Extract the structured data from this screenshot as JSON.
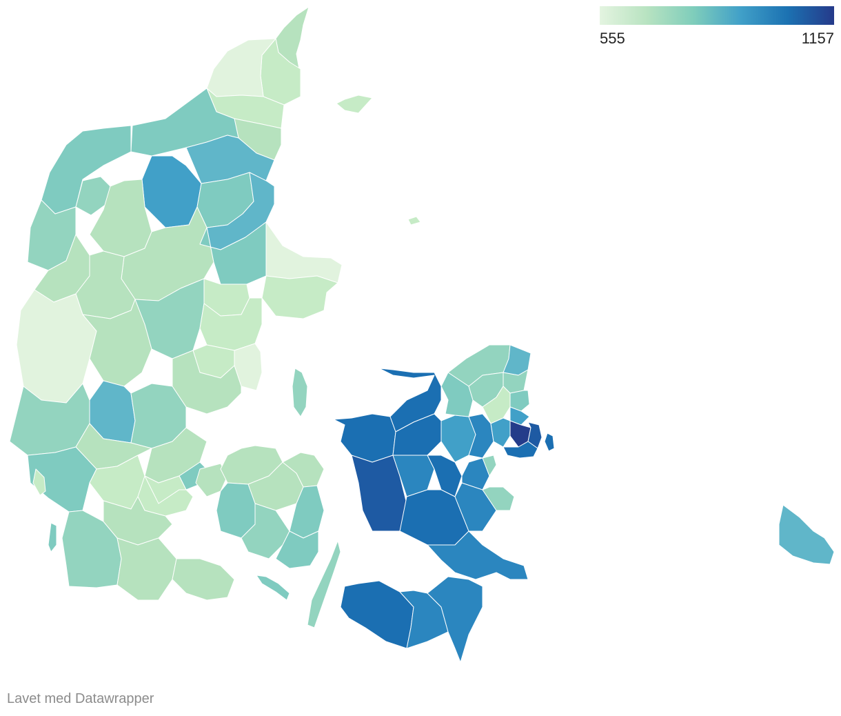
{
  "legend": {
    "min_label": "555",
    "max_label": "1157",
    "min_value": 555,
    "max_value": 1157,
    "gradient_colors": [
      "#e4f4e0",
      "#b8e3c1",
      "#7fcdbb",
      "#41a0c8",
      "#1c72b2",
      "#253a8a"
    ]
  },
  "credit": {
    "text": "Lavet med Datawrapper"
  },
  "map": {
    "type": "choropleth",
    "palette": {
      "level_1": "#e1f3de",
      "level_2": "#c6ebc6",
      "level_3": "#b6e2be",
      "level_4": "#93d4bf",
      "level_5": "#7fcbc0",
      "level_6": "#60b6c9",
      "level_7": "#41a0c8",
      "level_8": "#2b86bf",
      "level_9": "#1b6fb2",
      "level_10": "#1e5aa3",
      "level_11": "#243c8a"
    }
  }
}
